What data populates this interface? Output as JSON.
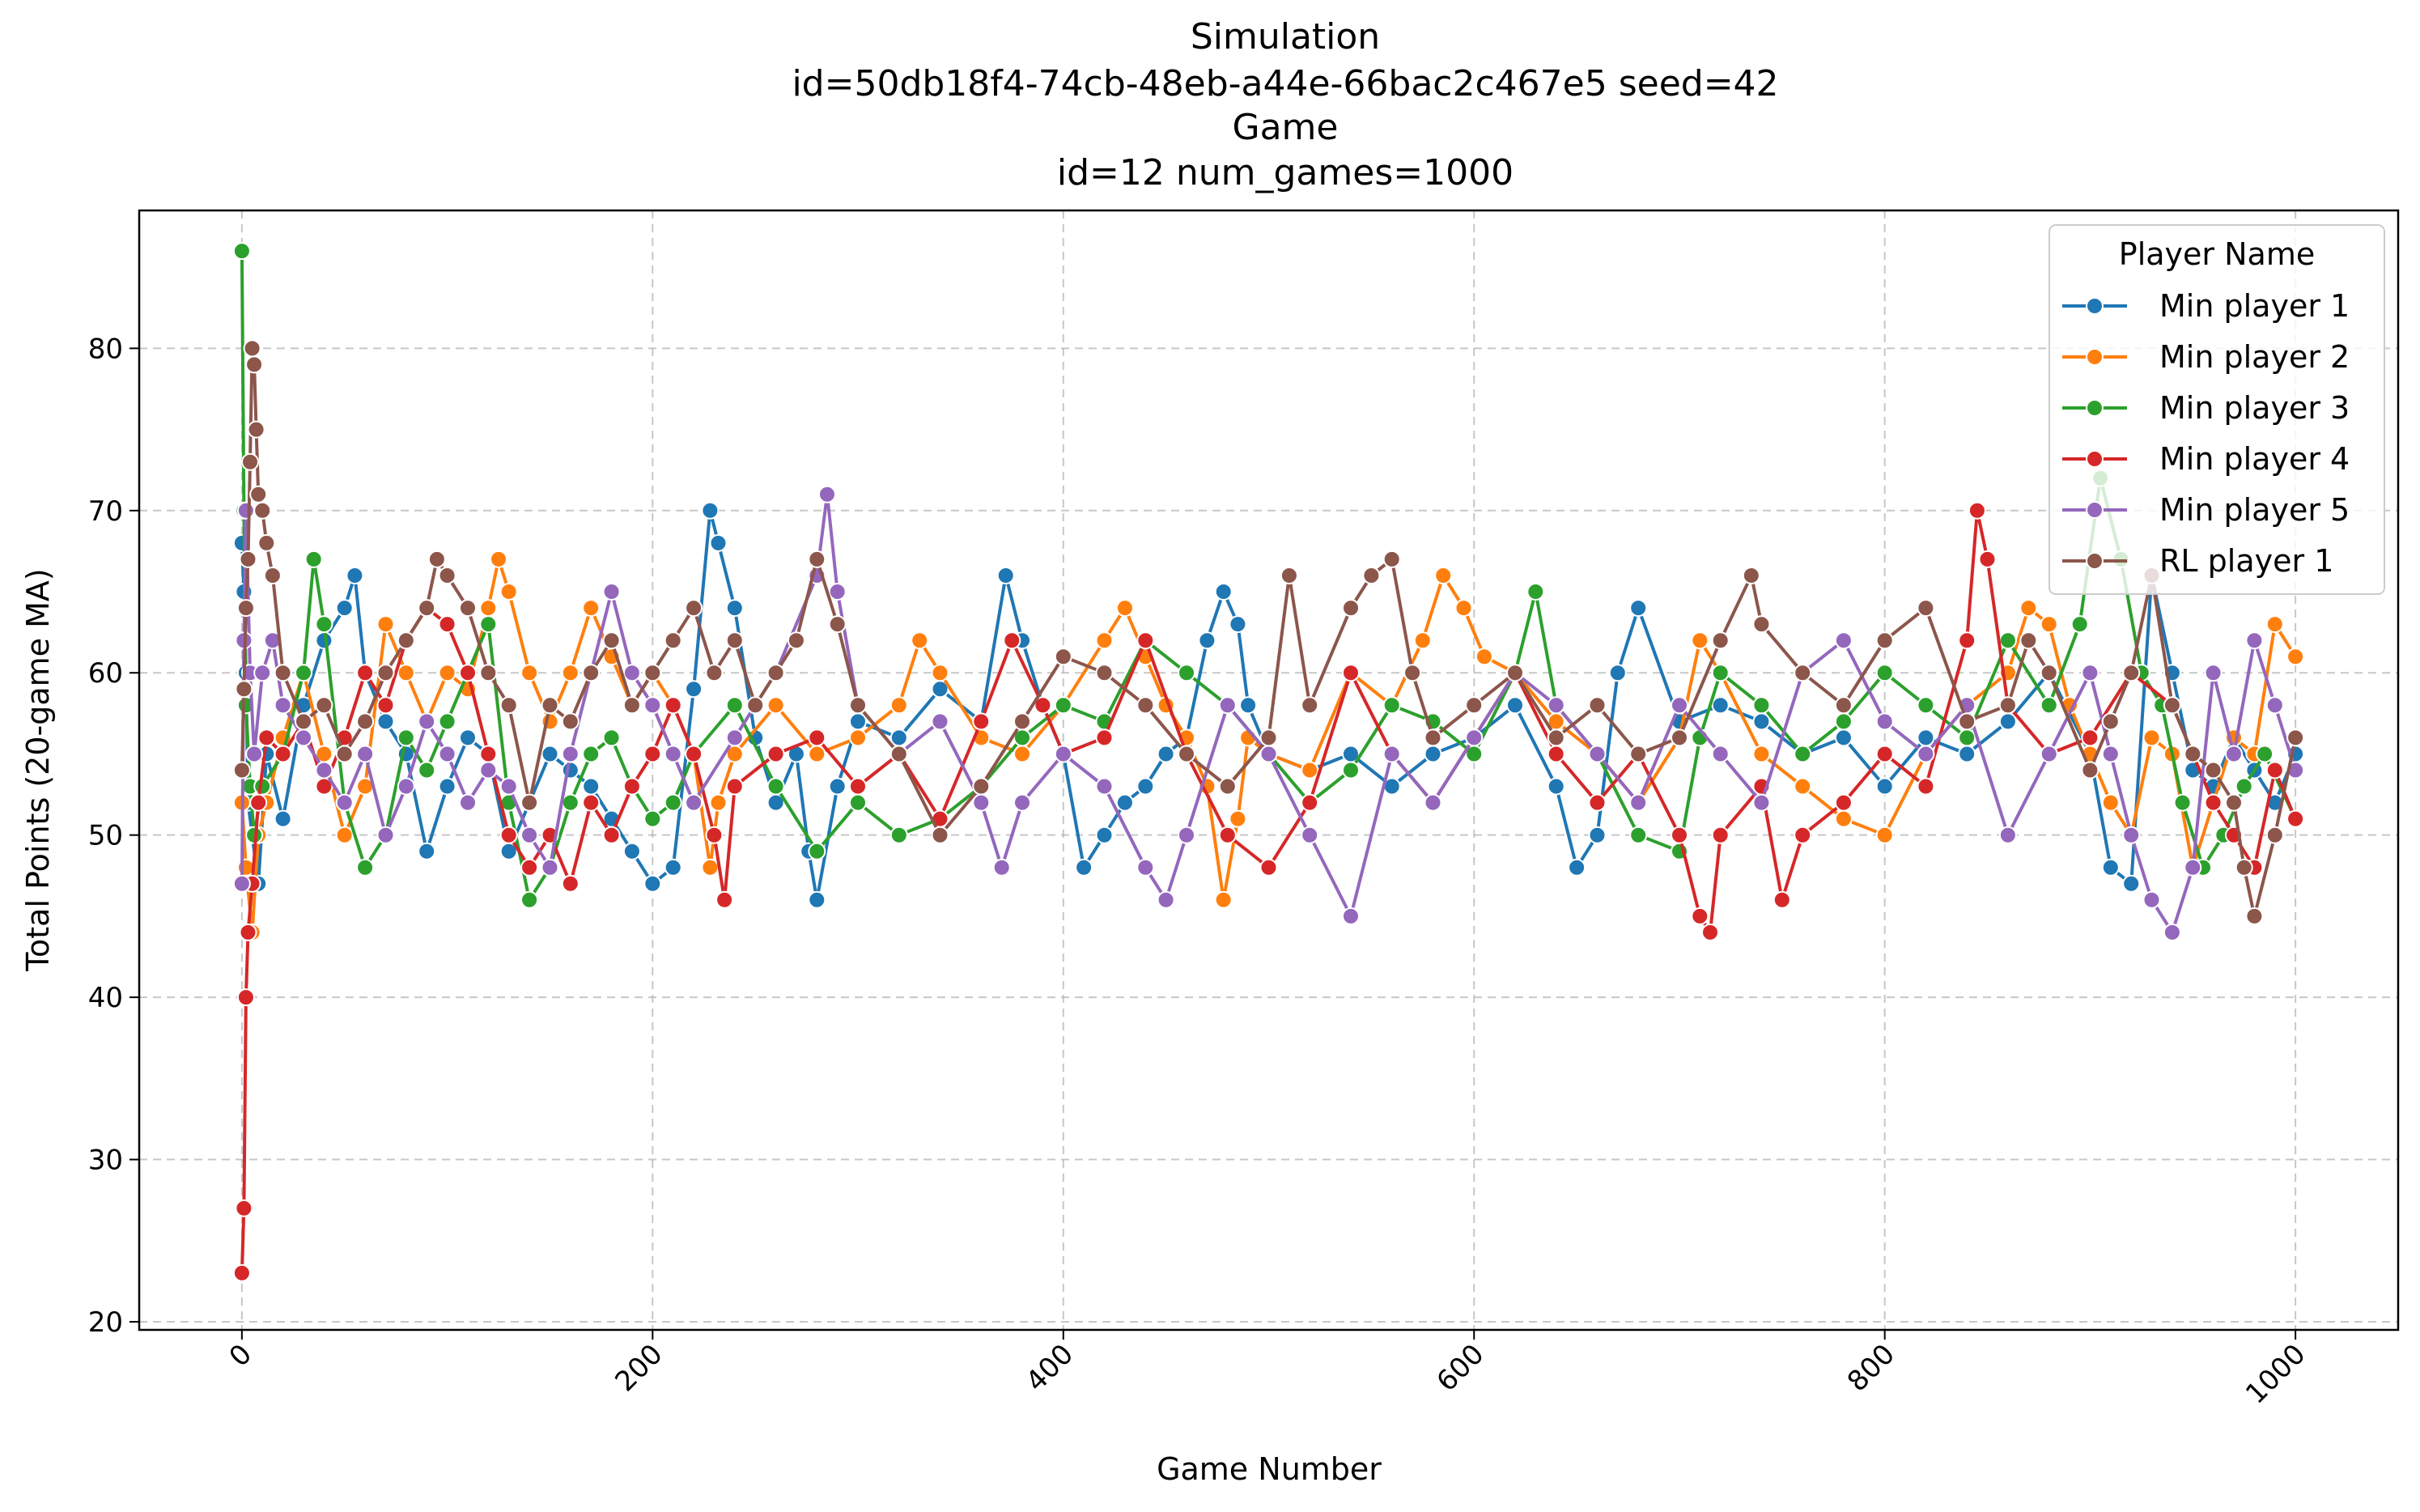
{
  "chart_data": {
    "type": "line",
    "title_lines": [
      "Simulation",
      "id=50db18f4-74cb-48eb-a44e-66bac2c467e5 seed=42",
      "Game",
      "id=12 num_games=1000"
    ],
    "xlabel": "Game Number",
    "ylabel": "Total Points (20-game MA)",
    "xlim": [
      -50,
      1050
    ],
    "ylim": [
      19.5,
      88.5
    ],
    "xticks": [
      0,
      200,
      400,
      600,
      800,
      1000
    ],
    "yticks": [
      20,
      30,
      40,
      50,
      60,
      70,
      80
    ],
    "grid": true,
    "legend_placement": "top-right",
    "legend_title": "Player Name",
    "series": [
      {
        "name": "Min player 1",
        "color": "#1f77b4",
        "x": [
          0,
          1,
          2,
          3,
          5,
          8,
          12,
          20,
          30,
          40,
          50,
          55,
          60,
          70,
          80,
          90,
          100,
          110,
          120,
          130,
          140,
          150,
          160,
          170,
          180,
          190,
          200,
          210,
          220,
          228,
          232,
          240,
          250,
          260,
          270,
          276,
          280,
          290,
          300,
          320,
          340,
          360,
          372,
          380,
          390,
          400,
          410,
          420,
          430,
          440,
          450,
          460,
          470,
          478,
          485,
          490,
          500,
          520,
          540,
          560,
          580,
          600,
          620,
          640,
          650,
          660,
          670,
          680,
          700,
          720,
          740,
          760,
          780,
          800,
          820,
          840,
          860,
          880,
          900,
          910,
          920,
          930,
          940,
          950,
          960,
          970,
          980,
          990,
          1000
        ],
        "y": [
          68,
          65,
          60,
          52,
          50,
          47,
          55,
          51,
          58,
          62,
          64,
          66,
          60,
          57,
          55,
          49,
          53,
          56,
          55,
          49,
          52,
          55,
          54,
          53,
          51,
          49,
          47,
          48,
          59,
          70,
          68,
          64,
          56,
          52,
          55,
          49,
          46,
          53,
          57,
          56,
          59,
          57,
          66,
          62,
          58,
          55,
          48,
          50,
          52,
          53,
          55,
          56,
          62,
          65,
          63,
          58,
          55,
          54,
          55,
          53,
          55,
          56,
          58,
          53,
          48,
          50,
          60,
          64,
          57,
          58,
          57,
          55,
          56,
          53,
          56,
          55,
          57,
          60,
          55,
          48,
          47,
          66,
          60,
          54,
          53,
          56,
          54,
          52,
          55
        ]
      },
      {
        "name": "Min player 2",
        "color": "#ff7f0e",
        "x": [
          0,
          2,
          5,
          8,
          12,
          20,
          30,
          40,
          50,
          60,
          70,
          80,
          90,
          100,
          110,
          120,
          125,
          130,
          140,
          150,
          160,
          170,
          180,
          190,
          200,
          210,
          220,
          228,
          232,
          240,
          260,
          280,
          300,
          320,
          330,
          340,
          360,
          380,
          400,
          420,
          430,
          440,
          450,
          460,
          470,
          478,
          485,
          490,
          500,
          520,
          540,
          560,
          575,
          585,
          595,
          605,
          620,
          640,
          660,
          680,
          700,
          710,
          720,
          740,
          760,
          780,
          800,
          820,
          840,
          860,
          870,
          880,
          890,
          900,
          910,
          920,
          930,
          940,
          950,
          960,
          970,
          980,
          990,
          1000
        ],
        "y": [
          52,
          48,
          44,
          50,
          52,
          56,
          60,
          55,
          50,
          53,
          63,
          60,
          57,
          60,
          59,
          64,
          67,
          65,
          60,
          57,
          60,
          64,
          61,
          58,
          60,
          58,
          55,
          48,
          52,
          55,
          58,
          55,
          56,
          58,
          62,
          60,
          56,
          55,
          58,
          62,
          64,
          61,
          58,
          56,
          53,
          46,
          51,
          56,
          55,
          54,
          60,
          58,
          62,
          66,
          64,
          61,
          60,
          57,
          55,
          52,
          56,
          62,
          60,
          55,
          53,
          51,
          50,
          55,
          58,
          60,
          64,
          63,
          58,
          55,
          52,
          50,
          56,
          55,
          48,
          52,
          56,
          55,
          63,
          61
        ]
      },
      {
        "name": "Min player 3",
        "color": "#2ca02c",
        "x": [
          0,
          1,
          2,
          4,
          6,
          10,
          20,
          30,
          35,
          40,
          50,
          60,
          70,
          80,
          90,
          100,
          110,
          120,
          130,
          140,
          150,
          160,
          170,
          180,
          190,
          200,
          210,
          220,
          240,
          260,
          280,
          300,
          320,
          340,
          360,
          380,
          400,
          420,
          440,
          460,
          480,
          500,
          520,
          540,
          560,
          580,
          600,
          620,
          630,
          640,
          660,
          680,
          700,
          710,
          720,
          740,
          760,
          780,
          800,
          820,
          840,
          860,
          880,
          895,
          905,
          915,
          925,
          935,
          945,
          955,
          965,
          975,
          985,
          1000
        ],
        "y": [
          86,
          70,
          58,
          53,
          50,
          53,
          55,
          60,
          67,
          63,
          52,
          48,
          50,
          56,
          54,
          57,
          60,
          63,
          52,
          46,
          48,
          52,
          55,
          56,
          53,
          51,
          52,
          55,
          58,
          53,
          49,
          52,
          50,
          51,
          53,
          56,
          58,
          57,
          62,
          60,
          58,
          55,
          52,
          54,
          58,
          57,
          55,
          60,
          65,
          58,
          55,
          50,
          49,
          56,
          60,
          58,
          55,
          57,
          60,
          58,
          56,
          62,
          58,
          63,
          72,
          67,
          60,
          58,
          52,
          48,
          50,
          53,
          55,
          51
        ]
      },
      {
        "name": "Min player 4",
        "color": "#d62728",
        "x": [
          0,
          1,
          2,
          3,
          5,
          8,
          12,
          20,
          30,
          40,
          50,
          60,
          70,
          80,
          90,
          100,
          110,
          120,
          130,
          140,
          150,
          160,
          170,
          180,
          190,
          200,
          210,
          220,
          230,
          235,
          240,
          260,
          280,
          300,
          320,
          340,
          360,
          375,
          390,
          400,
          420,
          440,
          460,
          480,
          500,
          520,
          540,
          560,
          580,
          600,
          620,
          640,
          660,
          680,
          700,
          710,
          715,
          720,
          740,
          750,
          760,
          780,
          800,
          820,
          840,
          845,
          850,
          860,
          880,
          900,
          920,
          940,
          960,
          970,
          980,
          990,
          1000
        ],
        "y": [
          23,
          27,
          40,
          44,
          47,
          52,
          56,
          55,
          57,
          53,
          56,
          60,
          58,
          62,
          64,
          63,
          60,
          55,
          50,
          48,
          50,
          47,
          52,
          50,
          53,
          55,
          58,
          55,
          50,
          46,
          53,
          55,
          56,
          53,
          55,
          51,
          57,
          62,
          58,
          55,
          56,
          62,
          55,
          50,
          48,
          52,
          60,
          55,
          52,
          56,
          60,
          55,
          52,
          55,
          50,
          45,
          44,
          50,
          53,
          46,
          50,
          52,
          55,
          53,
          62,
          70,
          67,
          58,
          55,
          56,
          60,
          58,
          52,
          50,
          48,
          54,
          51
        ]
      },
      {
        "name": "Min player 5",
        "color": "#9467bd",
        "x": [
          0,
          1,
          2,
          4,
          6,
          10,
          15,
          20,
          30,
          40,
          50,
          60,
          70,
          80,
          90,
          100,
          110,
          120,
          130,
          140,
          150,
          160,
          170,
          180,
          190,
          200,
          210,
          220,
          240,
          260,
          280,
          285,
          290,
          300,
          320,
          340,
          360,
          370,
          380,
          400,
          420,
          440,
          450,
          460,
          480,
          500,
          520,
          540,
          560,
          580,
          600,
          620,
          640,
          660,
          680,
          700,
          720,
          740,
          760,
          780,
          800,
          820,
          840,
          860,
          880,
          900,
          910,
          920,
          930,
          940,
          950,
          960,
          970,
          980,
          990,
          1000
        ],
        "y": [
          47,
          62,
          70,
          60,
          55,
          60,
          62,
          58,
          56,
          54,
          52,
          55,
          50,
          53,
          57,
          55,
          52,
          54,
          53,
          50,
          48,
          55,
          60,
          65,
          60,
          58,
          55,
          52,
          56,
          60,
          66,
          71,
          65,
          58,
          55,
          57,
          52,
          48,
          52,
          55,
          53,
          48,
          46,
          50,
          58,
          55,
          50,
          45,
          55,
          52,
          56,
          60,
          58,
          55,
          52,
          58,
          55,
          52,
          60,
          62,
          57,
          55,
          58,
          50,
          55,
          60,
          55,
          50,
          46,
          44,
          48,
          60,
          55,
          62,
          58,
          54
        ]
      },
      {
        "name": "RL player 1",
        "color": "#8c564b",
        "x": [
          0,
          1,
          2,
          3,
          4,
          5,
          6,
          7,
          8,
          10,
          12,
          15,
          20,
          30,
          40,
          50,
          60,
          70,
          80,
          90,
          95,
          100,
          110,
          120,
          130,
          140,
          150,
          160,
          170,
          180,
          190,
          200,
          210,
          220,
          230,
          240,
          250,
          260,
          270,
          280,
          290,
          300,
          320,
          340,
          360,
          380,
          400,
          420,
          440,
          460,
          480,
          500,
          510,
          520,
          540,
          550,
          560,
          570,
          580,
          600,
          620,
          640,
          660,
          680,
          700,
          720,
          735,
          740,
          760,
          780,
          800,
          820,
          840,
          860,
          870,
          880,
          900,
          910,
          920,
          930,
          940,
          950,
          960,
          970,
          975,
          980,
          990,
          1000
        ],
        "y": [
          54,
          59,
          64,
          67,
          73,
          80,
          79,
          75,
          71,
          70,
          68,
          66,
          60,
          57,
          58,
          55,
          57,
          60,
          62,
          64,
          67,
          66,
          64,
          60,
          58,
          52,
          58,
          57,
          60,
          62,
          58,
          60,
          62,
          64,
          60,
          62,
          58,
          60,
          62,
          67,
          63,
          58,
          55,
          50,
          53,
          57,
          61,
          60,
          58,
          55,
          53,
          56,
          66,
          58,
          64,
          66,
          67,
          60,
          56,
          58,
          60,
          56,
          58,
          55,
          56,
          62,
          66,
          63,
          60,
          58,
          62,
          64,
          57,
          58,
          62,
          60,
          54,
          57,
          60,
          66,
          58,
          55,
          54,
          52,
          48,
          45,
          50,
          56
        ]
      }
    ]
  }
}
